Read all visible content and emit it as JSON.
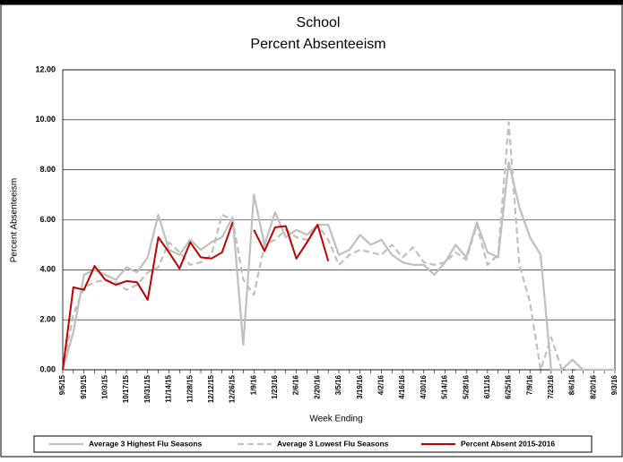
{
  "chart_data": {
    "type": "line",
    "title": "School",
    "subtitle": "Percent Absenteeism",
    "x_label": "Week Ending",
    "y_label": "Percent Absenteeism",
    "categories": [
      "9/5/15",
      null,
      "9/19/15",
      null,
      "10/3/15",
      null,
      "10/17/15",
      null,
      "10/31/15",
      null,
      "11/14/15",
      null,
      "11/28/15",
      null,
      "12/12/15",
      null,
      "12/26/15",
      null,
      "1/9/16",
      null,
      "1/23/16",
      null,
      "2/6/16",
      null,
      "2/20/16",
      null,
      "3/5/16",
      null,
      "3/19/16",
      null,
      "4/2/16",
      null,
      "4/16/16",
      null,
      "4/30/16",
      null,
      "5/14/16",
      null,
      "5/28/16",
      null,
      "6/11/16",
      null,
      "6/25/16",
      null,
      "7/9/16",
      null,
      "7/23/16",
      null,
      "8/6/16",
      null,
      "8/20/16",
      null,
      "9/3/16"
    ],
    "series": [
      {
        "name": "Average 3 Highest Flu Seasons",
        "color": "#bfbfbf",
        "dash": false,
        "values": [
          0,
          1.5,
          3.8,
          4.0,
          3.8,
          3.6,
          4.1,
          3.9,
          4.5,
          6.2,
          4.8,
          4.6,
          5.2,
          4.8,
          5.1,
          5.3,
          6.1,
          1.0,
          7.0,
          5.0,
          6.3,
          5.3,
          5.6,
          5.4,
          5.8,
          5.8,
          4.6,
          4.8,
          5.4,
          5.0,
          5.2,
          4.6,
          4.3,
          4.2,
          4.2,
          3.8,
          4.3,
          5.0,
          4.5,
          5.9,
          4.7,
          4.5,
          8.3,
          6.5,
          5.3,
          4.6,
          0,
          0,
          0.4,
          0,
          0,
          0,
          0
        ]
      },
      {
        "name": "Average 3 Lowest Flu Seasons",
        "color": "#bfbfbf",
        "dash": true,
        "values": [
          0,
          2.2,
          3.3,
          3.5,
          3.6,
          3.5,
          3.2,
          3.4,
          3.9,
          4.1,
          5.1,
          4.7,
          4.2,
          4.3,
          4.6,
          6.2,
          6.0,
          3.6,
          3.0,
          5.0,
          5.2,
          5.6,
          5.3,
          5.2,
          5.8,
          5.2,
          4.2,
          4.6,
          4.8,
          4.7,
          4.6,
          5.0,
          4.5,
          4.9,
          4.3,
          4.2,
          4.3,
          4.7,
          4.4,
          5.8,
          4.2,
          4.6,
          9.9,
          4.2,
          2.7,
          0,
          1.3,
          0,
          0,
          0,
          0,
          0,
          0
        ]
      },
      {
        "name": "Percent Absent 2015-2016",
        "color": "#c00000",
        "dash": false,
        "values": [
          0,
          3.3,
          3.2,
          4.15,
          3.6,
          3.4,
          3.55,
          3.5,
          2.8,
          5.3,
          4.7,
          4.05,
          5.1,
          4.5,
          4.45,
          4.7,
          5.9,
          null,
          5.6,
          4.75,
          5.7,
          5.75,
          4.45,
          5.1,
          5.8,
          4.35,
          null,
          null,
          null,
          null,
          null,
          null,
          null,
          null,
          null,
          null,
          null,
          null,
          null,
          null,
          null,
          null,
          null,
          null,
          null,
          null,
          null,
          null,
          null,
          null,
          null,
          null,
          null
        ]
      }
    ],
    "ylim": [
      0,
      12
    ],
    "yticks": [
      {
        "value": 0,
        "label": "0.00"
      },
      {
        "value": 2,
        "label": "2.00"
      },
      {
        "value": 4,
        "label": "4.00"
      },
      {
        "value": 6,
        "label": "6.00"
      },
      {
        "value": 8,
        "label": "8.00"
      },
      {
        "value": 10,
        "label": "10.00"
      },
      {
        "value": 12,
        "label": "12.00"
      }
    ],
    "grid": true
  }
}
